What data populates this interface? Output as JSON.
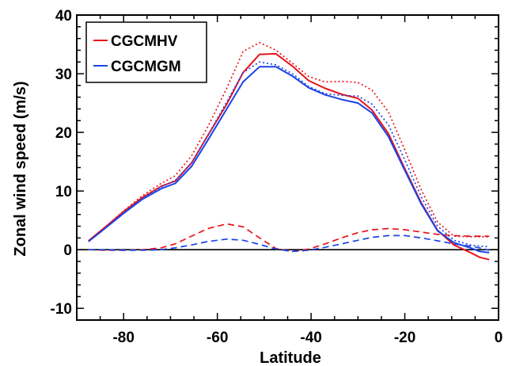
{
  "chart_data": {
    "type": "line",
    "xlabel": "Latitude",
    "ylabel": "Zonal wind speed (m/s)",
    "xlim": [
      -90,
      0
    ],
    "ylim": [
      -12,
      40
    ],
    "xticks": [
      -80,
      -60,
      -40,
      -20,
      0
    ],
    "yticks": [
      -10,
      0,
      10,
      20,
      30,
      40
    ],
    "grid": false,
    "legend_position": "top-left",
    "legend": [
      {
        "label": "CGCMHV",
        "color": "#e8141b"
      },
      {
        "label": "CGCMGM",
        "color": "#1a44e8"
      }
    ],
    "reference_line_y": 0,
    "series": [
      {
        "name": "CGCMHV",
        "style": "solid",
        "color": "#e8141b",
        "x": [
          -87.5,
          -84,
          -80,
          -76,
          -72,
          -69,
          -65.5,
          -62,
          -58,
          -54.5,
          -51,
          -47.5,
          -44,
          -40.5,
          -37,
          -33.5,
          -30,
          -27,
          -23.5,
          -20,
          -16.5,
          -13,
          -9.5,
          -6,
          -4,
          -2
        ],
        "y": [
          1.5,
          3.8,
          6.5,
          8.9,
          10.8,
          11.7,
          14.8,
          19.5,
          24.8,
          30.2,
          33.3,
          33.4,
          31.3,
          28.8,
          27.5,
          26.5,
          25.8,
          23.8,
          19.8,
          13.8,
          8.0,
          3.3,
          0.8,
          -0.5,
          -1.3,
          -1.7
        ]
      },
      {
        "name": "CGCMGM",
        "style": "solid",
        "color": "#1a44e8",
        "x": [
          -87.5,
          -84,
          -80,
          -76,
          -72,
          -69,
          -65.5,
          -62,
          -58,
          -54.5,
          -51,
          -47.5,
          -44,
          -40.5,
          -37,
          -33.5,
          -30,
          -27,
          -23.5,
          -20,
          -16.5,
          -13,
          -9.5,
          -6,
          -4,
          -2
        ],
        "y": [
          1.4,
          3.6,
          6.2,
          8.6,
          10.4,
          11.3,
          14.2,
          18.7,
          24.0,
          28.6,
          31.2,
          31.2,
          29.6,
          27.6,
          26.4,
          25.6,
          25.0,
          23.3,
          19.3,
          13.5,
          7.8,
          3.2,
          1.2,
          0.3,
          -0.3,
          -0.5
        ]
      },
      {
        "name": "",
        "style": "dotted",
        "color": "#e8141b",
        "x": [
          -87.5,
          -84,
          -80,
          -76,
          -72,
          -69,
          -65.5,
          -62,
          -58,
          -54.5,
          -51,
          -47.5,
          -44,
          -40.5,
          -37,
          -33.5,
          -30,
          -27,
          -23.5,
          -20,
          -16.5,
          -13,
          -9.5,
          -6,
          -4,
          -2
        ],
        "y": [
          1.5,
          3.8,
          6.6,
          9.2,
          11.3,
          12.6,
          16.0,
          21.0,
          27.5,
          33.8,
          35.3,
          34.0,
          31.8,
          29.5,
          28.6,
          28.7,
          28.5,
          27.2,
          23.5,
          17.0,
          10.2,
          4.7,
          2.3,
          2.2,
          2.2,
          2.2
        ]
      },
      {
        "name": "",
        "style": "dotted",
        "color": "#1a44e8",
        "x": [
          -87.5,
          -84,
          -80,
          -76,
          -72,
          -69,
          -65.5,
          -62,
          -58,
          -54.5,
          -51,
          -47.5,
          -44,
          -40.5,
          -37,
          -33.5,
          -30,
          -27,
          -23.5,
          -20,
          -16.5,
          -13,
          -9.5,
          -6,
          -4,
          -2
        ],
        "y": [
          1.4,
          3.6,
          6.3,
          8.7,
          10.7,
          11.8,
          14.8,
          19.5,
          25.2,
          30.2,
          32.0,
          31.5,
          30.0,
          27.8,
          26.6,
          26.3,
          26.2,
          24.8,
          21.3,
          15.3,
          9.0,
          4.0,
          1.6,
          0.8,
          0.6,
          0.5
        ]
      },
      {
        "name": "",
        "style": "dashed",
        "color": "#e8141b",
        "x": [
          -87.5,
          -84,
          -80,
          -76,
          -72,
          -69,
          -65.5,
          -62,
          -58,
          -54.5,
          -51,
          -47.5,
          -44,
          -40.5,
          -37,
          -33.5,
          -30,
          -27,
          -23.5,
          -20,
          -16.5,
          -13,
          -9.5,
          -6,
          -4,
          -2
        ],
        "y": [
          0.0,
          -0.1,
          -0.1,
          0.0,
          0.3,
          1.0,
          2.3,
          3.6,
          4.4,
          3.9,
          2.0,
          0.2,
          -0.3,
          0.1,
          1.0,
          2.0,
          2.9,
          3.4,
          3.6,
          3.4,
          3.0,
          2.6,
          2.4,
          2.3,
          2.3,
          2.3
        ]
      },
      {
        "name": "",
        "style": "dashed",
        "color": "#1a44e8",
        "x": [
          -87.5,
          -84,
          -80,
          -76,
          -72,
          -69,
          -65.5,
          -62,
          -58,
          -54.5,
          -51,
          -47.5,
          -44,
          -40.5,
          -37,
          -33.5,
          -30,
          -27,
          -23.5,
          -20,
          -16.5,
          -13,
          -9.5,
          -6,
          -4,
          -2
        ],
        "y": [
          0.0,
          0.0,
          -0.1,
          -0.1,
          0.0,
          0.3,
          0.8,
          1.4,
          1.8,
          1.6,
          0.9,
          0.1,
          -0.3,
          -0.1,
          0.4,
          1.0,
          1.6,
          2.1,
          2.4,
          2.4,
          2.0,
          1.5,
          1.0,
          0.6,
          0.3,
          -0.1
        ]
      }
    ]
  }
}
